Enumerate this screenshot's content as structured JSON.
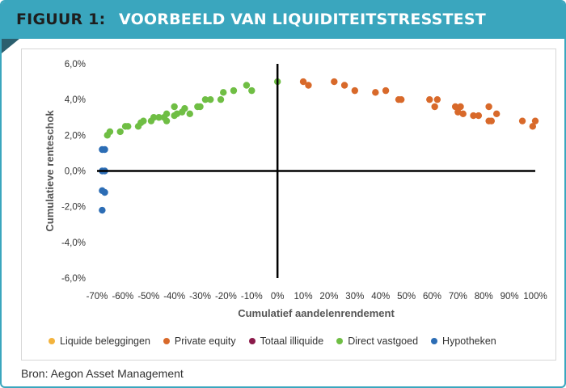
{
  "header": {
    "figure_label": "FIGUUR 1:",
    "title": "VOORBEELD VAN LIQUIDITEITSTRESSTEST"
  },
  "source": "Bron: Aegon Asset Management",
  "colors": {
    "banner": "#3aa6be"
  },
  "chart_data": {
    "type": "scatter",
    "xlabel": "Cumulatief aandelenrendement",
    "ylabel": "Cumulatieve renteschok",
    "xlim": [
      -70,
      100
    ],
    "ylim": [
      -6,
      6
    ],
    "x_ticks": [
      "-70%",
      "-60%",
      "-50%",
      "-40%",
      "-30%",
      "-20%",
      "-10%",
      "0%",
      "10%",
      "20%",
      "30%",
      "40%",
      "50%",
      "60%",
      "70%",
      "80%",
      "90%",
      "100%"
    ],
    "y_ticks": [
      "6,0%",
      "4,0%",
      "2,0%",
      "0,0%",
      "-2,0%",
      "-4,0%",
      "-6,0%"
    ],
    "legend_position": "bottom",
    "series": [
      {
        "name": "Liquide beleggingen",
        "color": "#f3b33d",
        "points": []
      },
      {
        "name": "Private equity",
        "color": "#d8692a",
        "points": [
          [
            10,
            5.0
          ],
          [
            12,
            4.8
          ],
          [
            22,
            5.0
          ],
          [
            26,
            4.8
          ],
          [
            30,
            4.5
          ],
          [
            38,
            4.4
          ],
          [
            42,
            4.5
          ],
          [
            47,
            4.0
          ],
          [
            48,
            4.0
          ],
          [
            59,
            4.0
          ],
          [
            61,
            3.6
          ],
          [
            62,
            4.0
          ],
          [
            69,
            3.6
          ],
          [
            71,
            3.6
          ],
          [
            70,
            3.3
          ],
          [
            72,
            3.2
          ],
          [
            76,
            3.1
          ],
          [
            78,
            3.1
          ],
          [
            82,
            3.6
          ],
          [
            82,
            2.8
          ],
          [
            83,
            2.8
          ],
          [
            85,
            3.2
          ],
          [
            95,
            2.8
          ],
          [
            99,
            2.5
          ],
          [
            100,
            2.8
          ]
        ]
      },
      {
        "name": "Totaal illiquide",
        "color": "#8b1a4a",
        "points": []
      },
      {
        "name": "Direct vastgoed",
        "color": "#6fbe44",
        "points": [
          [
            -66,
            2.0
          ],
          [
            -65,
            2.2
          ],
          [
            -61,
            2.2
          ],
          [
            -59,
            2.5
          ],
          [
            -58,
            2.5
          ],
          [
            -54,
            2.5
          ],
          [
            -53,
            2.7
          ],
          [
            -52,
            2.8
          ],
          [
            -49,
            2.8
          ],
          [
            -48,
            3.0
          ],
          [
            -46,
            3.0
          ],
          [
            -44,
            3.0
          ],
          [
            -43,
            3.2
          ],
          [
            -43,
            2.8
          ],
          [
            -40,
            3.6
          ],
          [
            -40,
            3.1
          ],
          [
            -39,
            3.2
          ],
          [
            -37,
            3.3
          ],
          [
            -36,
            3.5
          ],
          [
            -34,
            3.2
          ],
          [
            -31,
            3.6
          ],
          [
            -30,
            3.6
          ],
          [
            -28,
            4.0
          ],
          [
            -26,
            4.0
          ],
          [
            -22,
            4.0
          ],
          [
            -21,
            4.4
          ],
          [
            -17,
            4.5
          ],
          [
            -12,
            4.8
          ],
          [
            -10,
            4.5
          ],
          [
            0,
            5.0
          ]
        ]
      },
      {
        "name": "Hypotheken",
        "color": "#2c6db5",
        "points": [
          [
            -68,
            1.2
          ],
          [
            -67,
            1.2
          ],
          [
            -68,
            0.0
          ],
          [
            -67,
            0.0
          ],
          [
            -68,
            -1.1
          ],
          [
            -67,
            -1.2
          ],
          [
            -68,
            -2.2
          ]
        ]
      }
    ]
  }
}
